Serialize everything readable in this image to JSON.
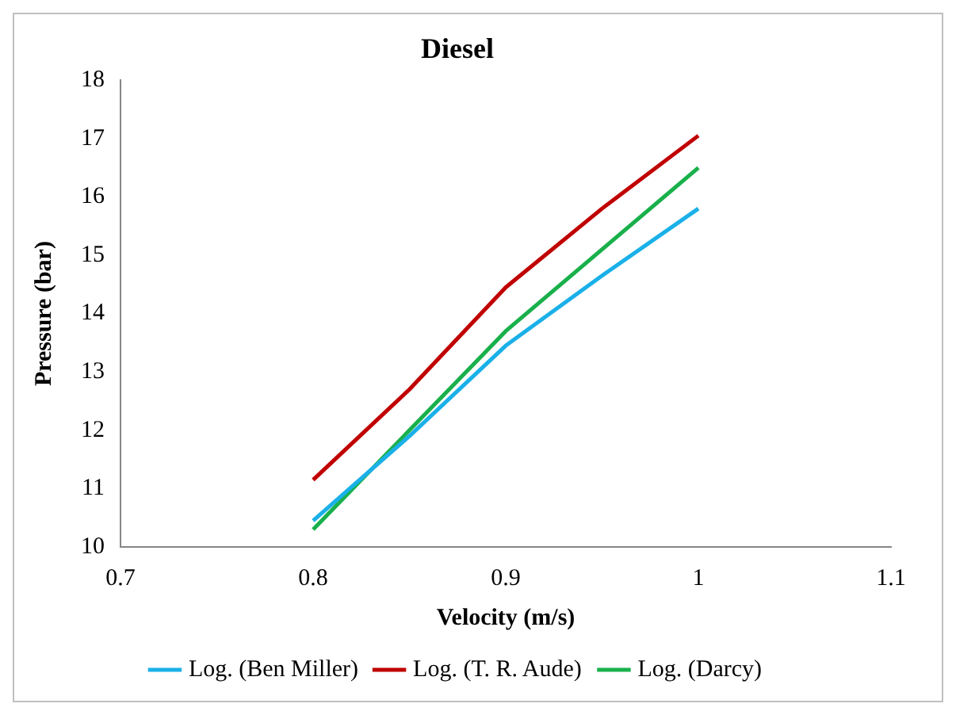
{
  "chart_data": {
    "type": "line",
    "title": "Diesel",
    "xlabel": "Velocity (m/s)",
    "ylabel": "Pressure (bar)",
    "x": [
      0.8,
      0.85,
      0.9,
      0.95,
      1.0
    ],
    "series": [
      {
        "name": "Log. (Ben Miller)",
        "color": "#1ab0e8",
        "values": [
          10.45,
          11.9,
          13.45,
          14.65,
          15.8
        ]
      },
      {
        "name": "Log. (T. R. Aude)",
        "color": "#c00000",
        "values": [
          11.15,
          12.7,
          14.45,
          15.8,
          17.05
        ]
      },
      {
        "name": "Log. (Darcy)",
        "color": "#19b04b",
        "values": [
          10.3,
          12.0,
          13.7,
          15.1,
          16.5
        ]
      }
    ],
    "xlim": [
      0.7,
      1.1
    ],
    "xticks": [
      0.7,
      0.8,
      0.9,
      1,
      1.1
    ],
    "ylim": [
      10,
      18
    ],
    "yticks": [
      10,
      11,
      12,
      13,
      14,
      15,
      16,
      17,
      18
    ],
    "grid": false,
    "legend": "bottom",
    "marker": "none",
    "line_style": "solid"
  }
}
